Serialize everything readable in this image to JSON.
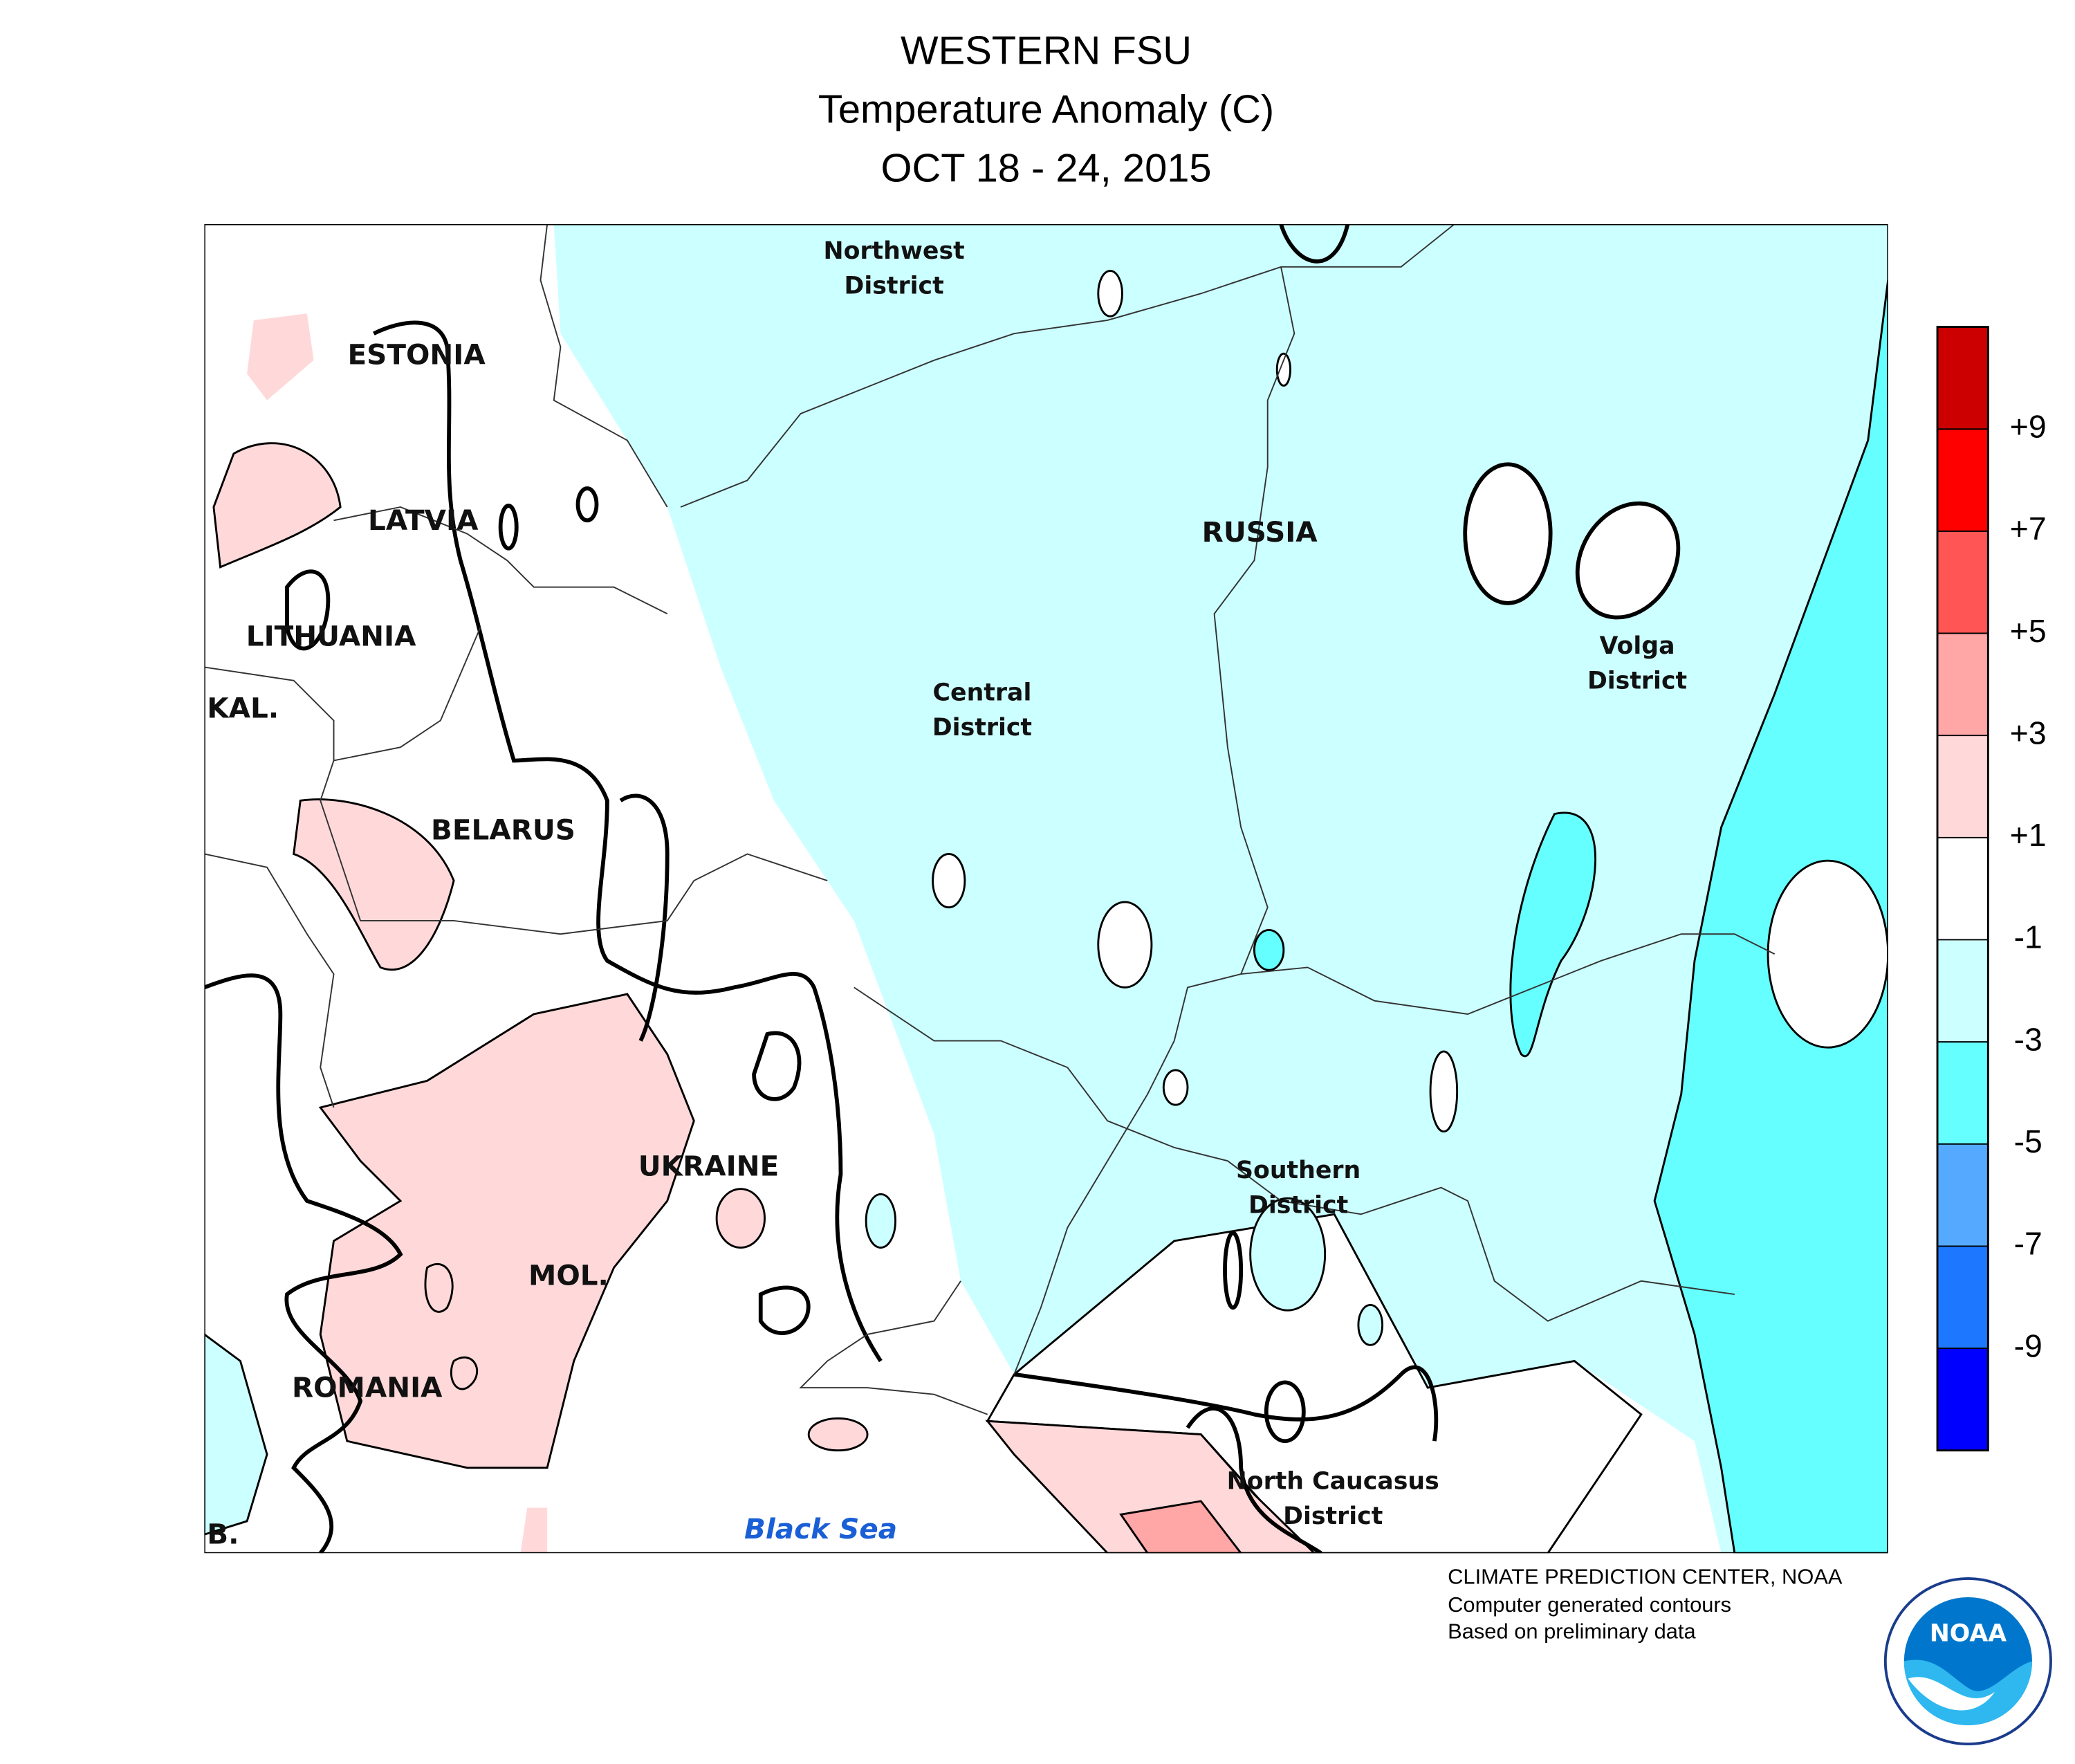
{
  "header": {
    "lines": [
      "WESTERN FSU",
      "Temperature Anomaly (C)",
      "OCT 18 - 24, 2015"
    ]
  },
  "map": {
    "countries": [
      "ESTONIA",
      "LATVIA",
      "LITHUANIA",
      "KAL.",
      "BELARUS",
      "UKRAINE",
      "MOL.",
      "ROMANIA",
      "RUSSIA",
      "B."
    ],
    "districts": [
      [
        "Northwest",
        "District"
      ],
      [
        "Central",
        "District"
      ],
      [
        "Volga",
        "District"
      ],
      [
        "Southern",
        "District"
      ],
      [
        "North Caucasus",
        "District"
      ]
    ],
    "sea": "Black Sea"
  },
  "legend": {
    "colors": [
      "#cc0000",
      "#ff0000",
      "#ff5555",
      "#ffa6a6",
      "#ffd9d9",
      "#ffffff",
      "#ccffff",
      "#66ffff",
      "#55aaff",
      "#1e78ff",
      "#0000ff"
    ],
    "ticks": [
      {
        "value": 9,
        "label": "+9"
      },
      {
        "value": 7,
        "label": "+7"
      },
      {
        "value": 5,
        "label": "+5"
      },
      {
        "value": 3,
        "label": "+3"
      },
      {
        "value": 1,
        "label": "+1"
      },
      -1,
      -3,
      -5,
      -7,
      -9
    ]
  },
  "footer": {
    "lines": [
      "CLIMATE PREDICTION CENTER, NOAA",
      "Computer generated contours",
      "Based on preliminary data"
    ],
    "logo_text": "NOAA"
  }
}
